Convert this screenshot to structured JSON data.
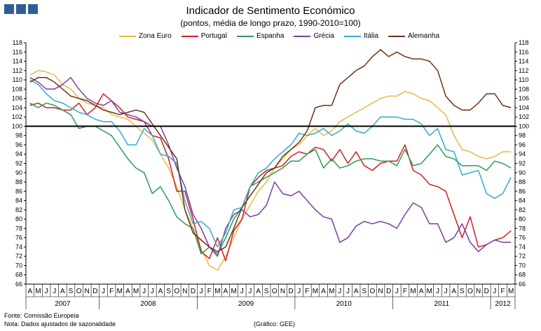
{
  "header": {
    "title": "Indicador de Sentimento Económico",
    "subtitle": "(pontos, média de longo prazo, 1990-2010=100)"
  },
  "footer": {
    "source": "Fonte: Comissão Europeia",
    "note": "Nota: Dados ajustados de sazonalidade",
    "credit": "(Gráfico: GEE)"
  },
  "chart_data": {
    "type": "line",
    "title": "Indicador de Sentimento Económico",
    "subtitle": "(pontos, média de longo prazo, 1990-2010=100)",
    "ylim": [
      66,
      118
    ],
    "ytick_step": 2,
    "reference_line": 100,
    "legend_position": "top",
    "month_labels": [
      "A",
      "M",
      "J",
      "J",
      "A",
      "S",
      "O",
      "N",
      "D",
      "J",
      "F",
      "M",
      "A",
      "M",
      "J",
      "J",
      "A",
      "S",
      "O",
      "N",
      "D",
      "J",
      "F",
      "M",
      "A",
      "M",
      "J",
      "J",
      "A",
      "S",
      "O",
      "N",
      "D",
      "J",
      "F",
      "M",
      "A",
      "M",
      "J",
      "J",
      "A",
      "S",
      "O",
      "N",
      "D",
      "J",
      "F",
      "M",
      "A",
      "M",
      "J",
      "J",
      "A",
      "S",
      "O",
      "N",
      "D",
      "J",
      "F",
      "M"
    ],
    "years": [
      {
        "label": "2007",
        "start": 0,
        "end": 9
      },
      {
        "label": "2008",
        "start": 9,
        "end": 21
      },
      {
        "label": "2009",
        "start": 21,
        "end": 33
      },
      {
        "label": "2010",
        "start": 33,
        "end": 45
      },
      {
        "label": "2011",
        "start": 45,
        "end": 57
      },
      {
        "label": "2012",
        "start": 57,
        "end": 60
      }
    ],
    "series": [
      {
        "name": "Zona Euro",
        "color": "#e8b94a",
        "values": [
          111,
          112,
          111.7,
          111,
          109,
          108,
          106,
          105,
          104.5,
          104,
          102.5,
          102,
          101.5,
          100,
          98.5,
          97,
          94,
          91,
          87,
          82,
          78,
          73.5,
          70,
          69,
          72,
          76,
          80,
          83,
          86,
          88,
          91,
          93,
          95,
          96,
          98,
          99.5,
          98,
          99,
          101,
          102,
          103,
          104,
          105,
          106,
          106.5,
          106.5,
          107.5,
          107,
          106,
          105.5,
          104,
          102.5,
          98,
          95,
          94.5,
          93.5,
          93,
          93.5,
          94.5,
          94.5
        ]
      },
      {
        "name": "Portugal",
        "color": "#cc2222",
        "values": [
          104.5,
          105,
          104,
          104,
          103.5,
          103.5,
          105,
          102.5,
          104,
          107,
          105.5,
          104,
          102,
          101.5,
          101,
          98,
          97.5,
          93,
          86,
          86,
          80,
          73,
          71.5,
          76,
          71,
          77.5,
          80,
          87,
          89,
          90.5,
          91,
          91.5,
          93.5,
          94.5,
          94,
          95.5,
          95,
          92.5,
          95,
          92,
          94.5,
          91.5,
          90.5,
          92,
          92.5,
          92.5,
          96,
          90.5,
          89.5,
          87.5,
          87,
          86,
          81,
          76,
          80.5,
          74,
          74.5,
          75.5,
          76,
          77.5
        ]
      },
      {
        "name": "Espanha",
        "color": "#2e9a5a",
        "values": [
          105,
          104,
          105,
          104.5,
          103.5,
          102.5,
          99.5,
          100,
          100,
          99,
          98,
          95.5,
          93,
          91,
          90,
          85.5,
          87,
          84,
          80.5,
          79,
          78,
          72.5,
          74,
          72.5,
          76,
          80,
          82.5,
          87,
          88,
          89,
          90,
          91,
          92.5,
          92.5,
          94,
          95,
          91,
          93,
          91,
          91.5,
          92.5,
          93,
          93,
          92.5,
          92.5,
          91.5,
          95,
          91.5,
          92,
          94,
          96,
          93.5,
          93,
          91.5,
          91.5,
          91.5,
          90.5,
          92.5,
          92,
          91
        ]
      },
      {
        "name": "Grécia",
        "color": "#7b3f9e",
        "values": [
          110.5,
          109.5,
          108,
          108,
          109,
          110.5,
          108,
          106,
          105,
          104.5,
          105.5,
          103,
          102.5,
          102,
          101,
          100,
          100,
          96,
          91,
          87,
          81,
          78,
          74,
          72,
          78,
          81,
          82,
          80.5,
          81,
          83,
          88,
          85.5,
          85,
          86,
          84,
          82,
          80.5,
          80,
          75,
          76,
          78.5,
          79.5,
          79,
          79.5,
          79,
          78,
          81,
          83.5,
          82.5,
          79,
          79,
          75,
          76,
          79,
          75,
          73,
          74.5,
          75.5,
          75,
          75
        ]
      },
      {
        "name": "Itália",
        "color": "#33aacc",
        "values": [
          110,
          109,
          107,
          105.5,
          105,
          104,
          103,
          102.5,
          101.5,
          101,
          101,
          99,
          96,
          96,
          99.5,
          98,
          94,
          93.5,
          92,
          84,
          79,
          79.5,
          78,
          74,
          77,
          82,
          82.5,
          87,
          90,
          91,
          93,
          94.5,
          96,
          98.5,
          98,
          98.5,
          99.5,
          98,
          99,
          100.5,
          99,
          98.5,
          100,
          102,
          102,
          102,
          101.5,
          101.5,
          100.5,
          98,
          99.5,
          95,
          94.5,
          89.5,
          90,
          90.5,
          85.5,
          84.5,
          85.5,
          89
        ]
      },
      {
        "name": "Alemanha",
        "color": "#6b3318",
        "values": [
          109.5,
          110.5,
          110.5,
          109.5,
          108,
          106.5,
          106,
          105.5,
          104.5,
          103.5,
          103,
          102.5,
          103,
          103.5,
          103,
          100.5,
          98,
          95.5,
          93,
          82,
          77,
          75.5,
          74,
          73,
          74,
          78,
          82.5,
          85,
          87.5,
          90,
          91,
          93.5,
          95,
          96.5,
          99,
          104,
          104.5,
          104.5,
          109,
          110.5,
          112,
          113,
          115,
          116.5,
          115,
          116,
          115,
          114.5,
          114.5,
          114,
          112,
          106.5,
          104.5,
          103.5,
          103.5,
          105,
          107,
          107,
          104.5,
          104
        ]
      }
    ]
  }
}
